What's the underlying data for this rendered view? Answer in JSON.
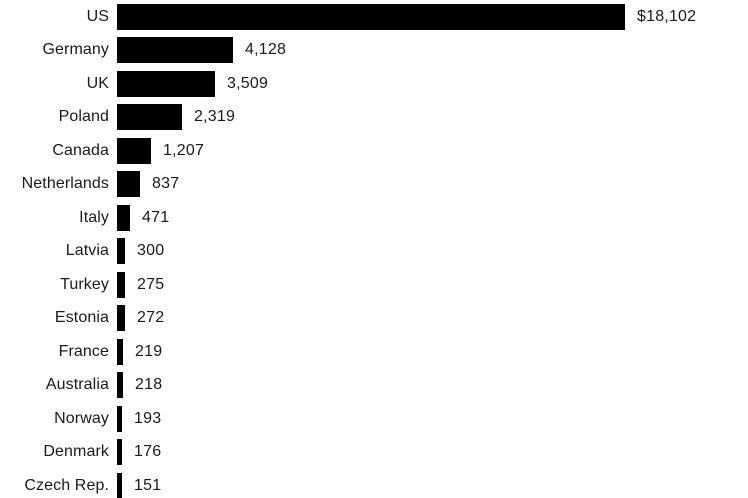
{
  "chart_data": {
    "type": "bar",
    "orientation": "horizontal",
    "title": "",
    "xlabel": "",
    "ylabel": "",
    "categories": [
      "US",
      "Germany",
      "UK",
      "Poland",
      "Canada",
      "Netherlands",
      "Italy",
      "Latvia",
      "Turkey",
      "Estonia",
      "France",
      "Australia",
      "Norway",
      "Denmark",
      "Czech Rep."
    ],
    "values": [
      18102,
      4128,
      3509,
      2319,
      1207,
      837,
      471,
      300,
      275,
      272,
      219,
      218,
      193,
      176,
      151
    ],
    "value_labels": [
      "$18,102",
      "4,128",
      "3,509",
      "2,319",
      "1,207",
      "837",
      "471",
      "300",
      "275",
      "272",
      "219",
      "218",
      "193",
      "176",
      "151"
    ],
    "xlim": [
      0,
      18102
    ],
    "grid": false,
    "legend": false,
    "bar_color": "#000000",
    "label_color": "#1a1a1a",
    "background_color": "#ffffff"
  }
}
